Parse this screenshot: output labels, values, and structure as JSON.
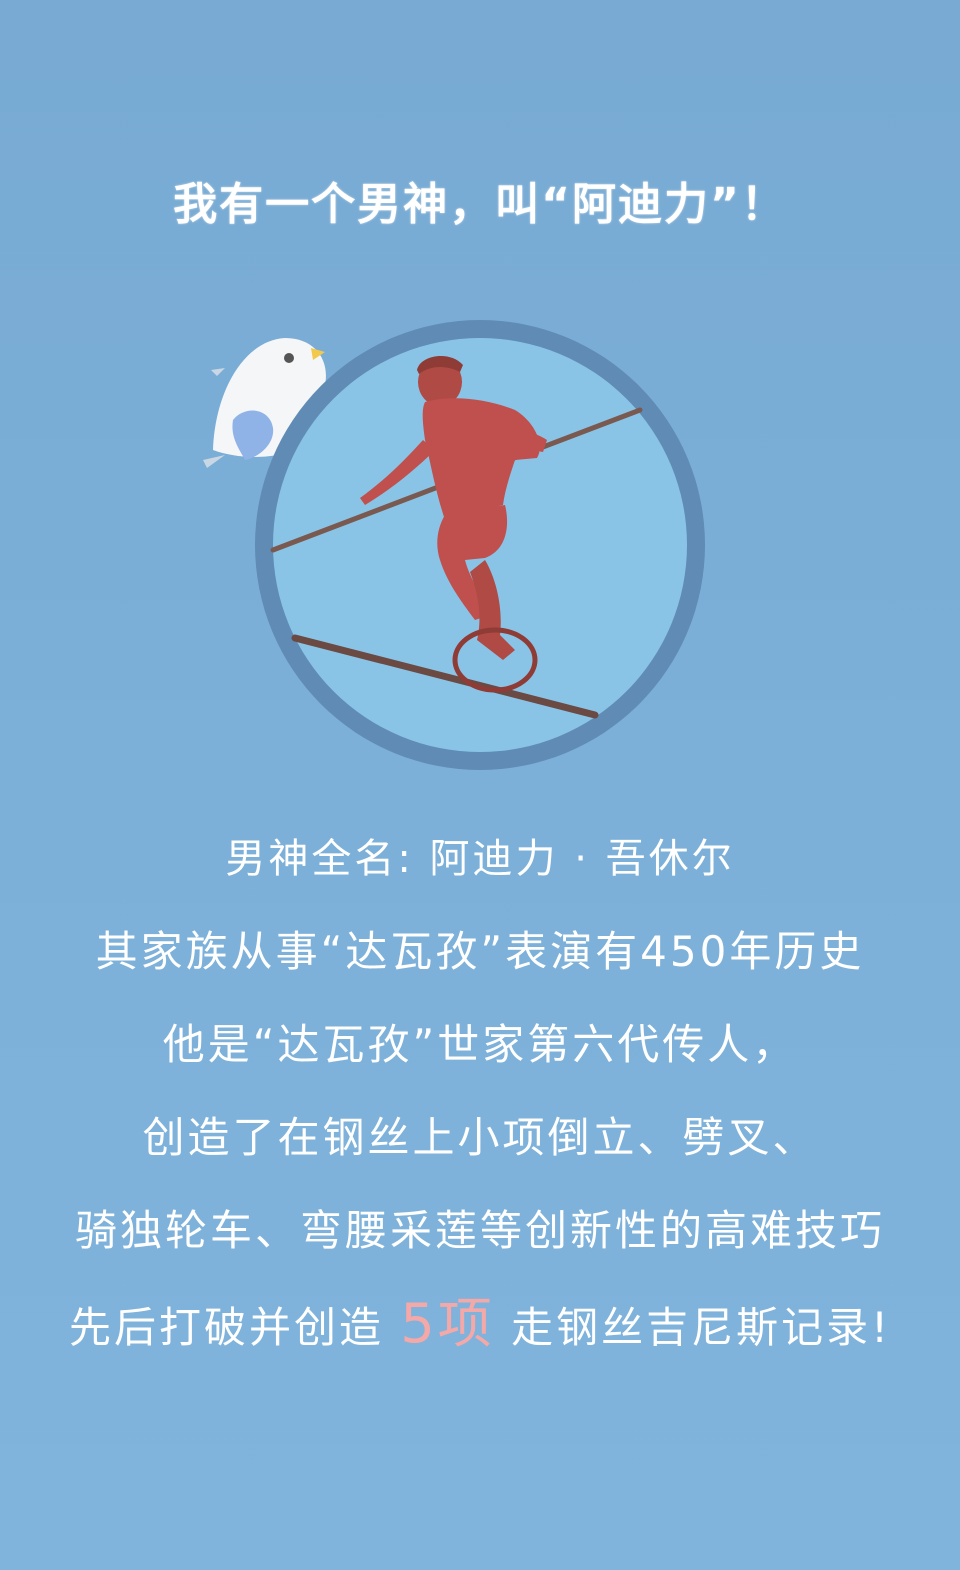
{
  "headline": "我有一个男神，叫“阿迪力”！",
  "lines": {
    "name": "男神全名: 阿迪力 · 吾休尔",
    "family": "其家族从事“达瓦孜”表演有450年历史",
    "heir": "他是“达瓦孜”世家第六代传人，",
    "tricks1": "创造了在钢丝上小项倒立、劈叉、",
    "tricks2": "骑独轮车、弯腰采莲等创新性的高难技巧",
    "records_before": "先后打破并创造 ",
    "records_highlight": "5项",
    "records_after": " 走钢丝吉尼斯记录!"
  },
  "colors": {
    "background": "#7aaed6",
    "circle_ring": "#5f8bb5",
    "circle_fill": "#89c4e6",
    "figure": "#c0504d",
    "highlight": "#f4a8a8"
  },
  "icons": {
    "bird": "white-bird-icon",
    "performer": "tightrope-unicycle-performer"
  }
}
